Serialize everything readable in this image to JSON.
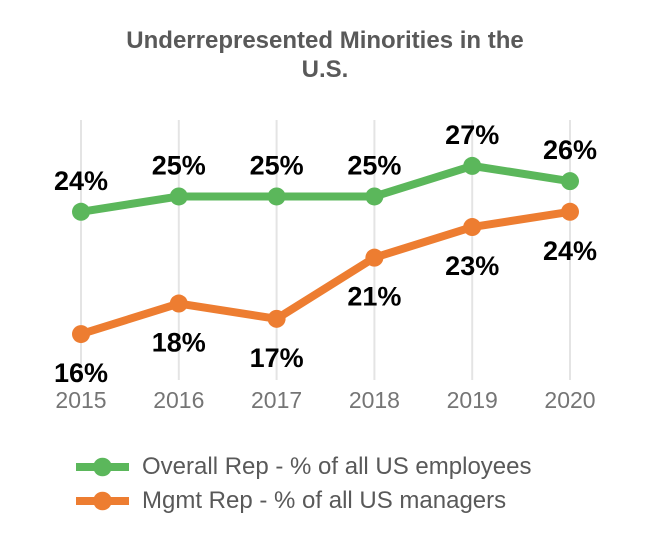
{
  "title": {
    "text": "Underrepresented Minorities in the U.S."
  },
  "chart_data": {
    "type": "line",
    "title": "Underrepresented Minorities in the U.S.",
    "x": [
      2015,
      2016,
      2017,
      2018,
      2019,
      2020
    ],
    "x_tick_labels": [
      "2015",
      "2016",
      "2017",
      "2018",
      "2019",
      "2020"
    ],
    "series": [
      {
        "name": "Overall Rep - % of all US employees",
        "values": [
          24,
          25,
          25,
          25,
          27,
          26
        ],
        "data_labels": [
          "24%",
          "25%",
          "25%",
          "25%",
          "27%",
          "26%"
        ],
        "color": "#5bb75b",
        "label_position": "above"
      },
      {
        "name": "Mgmt Rep - % of all US managers",
        "values": [
          16,
          18,
          17,
          21,
          23,
          24
        ],
        "data_labels": [
          "16%",
          "18%",
          "17%",
          "21%",
          "23%",
          "24%"
        ],
        "color": "#ed7d31",
        "label_position": "below"
      }
    ],
    "xlabel": "",
    "ylabel": "",
    "ylim": [
      13,
      30
    ],
    "grid": "vertical-only",
    "gridline_color": "#e4e4e4",
    "axis_tick_color": "#757575",
    "data_label_color": "#000000",
    "legend_position": "bottom-left",
    "data_label_format": "{v}%"
  }
}
